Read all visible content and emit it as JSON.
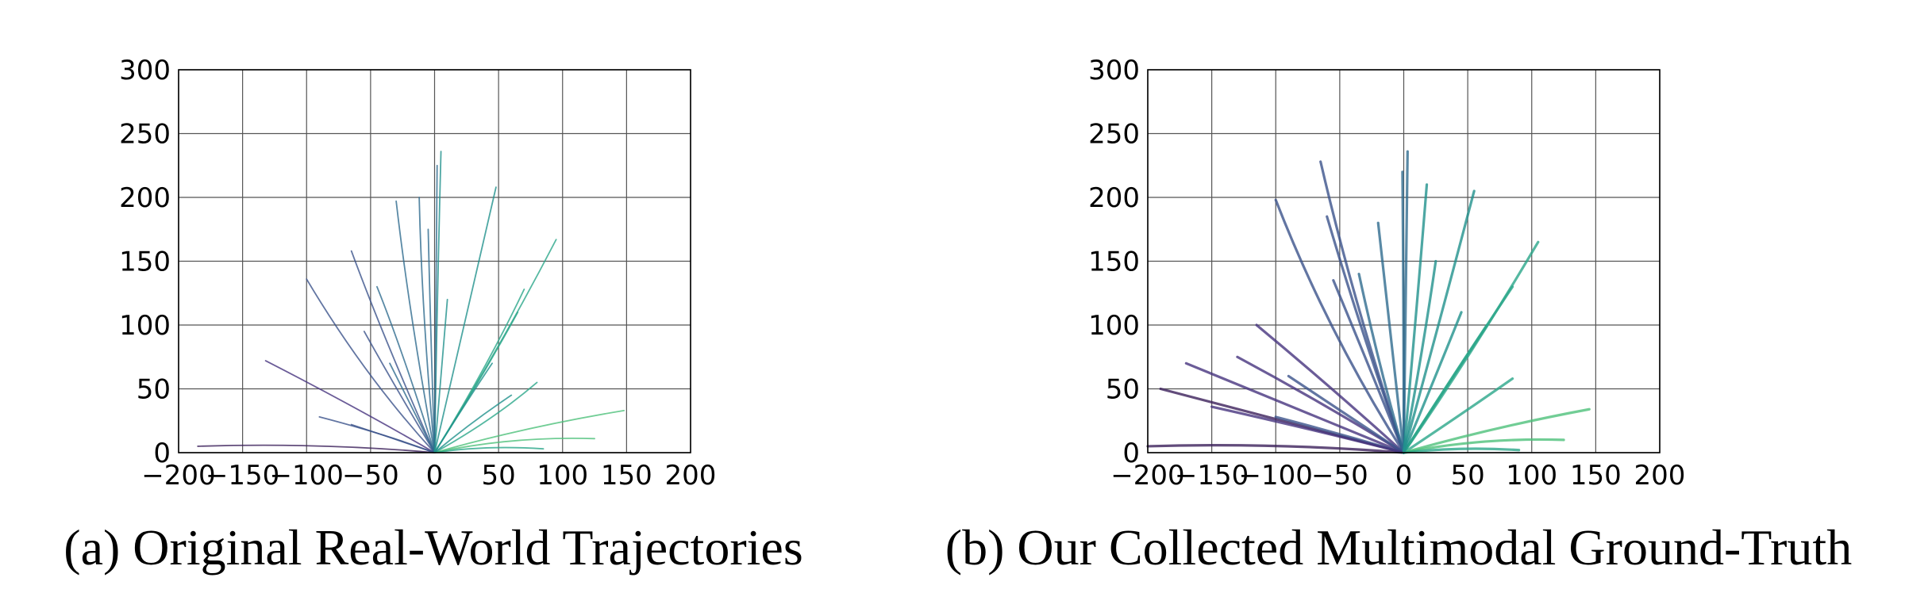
{
  "captions": {
    "a": "(a) Original Real-World Trajectories",
    "b": "(b) Our Collected Multimodal Ground-Truth"
  },
  "colors": {
    "palette": [
      "#3b1f5a",
      "#46337e",
      "#3b528b",
      "#2f6b8e",
      "#21918c",
      "#2aa68a",
      "#4ec07a"
    ],
    "grid": "#555555",
    "frame": "#000000"
  },
  "chart_data": [
    {
      "type": "line",
      "title": "",
      "xlabel": "",
      "ylabel": "",
      "xlim": [
        -200,
        200
      ],
      "ylim": [
        0,
        300
      ],
      "xticks": [
        "−200",
        "−150",
        "−100",
        "−50",
        "0",
        "50",
        "100",
        "150",
        "200"
      ],
      "yticks": [
        "0",
        "50",
        "100",
        "150",
        "200",
        "250",
        "300"
      ],
      "grid": true,
      "series": [
        {
          "x": [
            0,
            -90,
            -185
          ],
          "y": [
            0,
            8,
            5
          ]
        },
        {
          "x": [
            0,
            -60,
            -132
          ],
          "y": [
            0,
            35,
            72
          ]
        },
        {
          "x": [
            0,
            -40,
            -90
          ],
          "y": [
            0,
            15,
            28
          ]
        },
        {
          "x": [
            0,
            -35,
            -65
          ],
          "y": [
            0,
            12,
            22
          ]
        },
        {
          "x": [
            0,
            -55,
            -100
          ],
          "y": [
            0,
            60,
            136
          ]
        },
        {
          "x": [
            0,
            -40,
            -65
          ],
          "y": [
            0,
            90,
            158
          ]
        },
        {
          "x": [
            0,
            -25,
            -45
          ],
          "y": [
            0,
            80,
            130
          ]
        },
        {
          "x": [
            0,
            -30,
            -55
          ],
          "y": [
            0,
            50,
            95
          ]
        },
        {
          "x": [
            0,
            -20,
            -30
          ],
          "y": [
            0,
            110,
            197
          ]
        },
        {
          "x": [
            0,
            -10,
            -12
          ],
          "y": [
            0,
            110,
            200
          ]
        },
        {
          "x": [
            0,
            -20,
            -35
          ],
          "y": [
            0,
            40,
            70
          ]
        },
        {
          "x": [
            0,
            -3,
            -5
          ],
          "y": [
            0,
            90,
            175
          ]
        },
        {
          "x": [
            0,
            2,
            5
          ],
          "y": [
            0,
            120,
            236
          ]
        },
        {
          "x": [
            0,
            1,
            2
          ],
          "y": [
            0,
            100,
            225
          ]
        },
        {
          "x": [
            0,
            5,
            10
          ],
          "y": [
            0,
            60,
            120
          ]
        },
        {
          "x": [
            0,
            25,
            48
          ],
          "y": [
            0,
            110,
            208
          ]
        },
        {
          "x": [
            0,
            50,
            95
          ],
          "y": [
            0,
            80,
            167
          ]
        },
        {
          "x": [
            0,
            40,
            70
          ],
          "y": [
            0,
            65,
            128
          ]
        },
        {
          "x": [
            0,
            35,
            65
          ],
          "y": [
            0,
            55,
            110
          ]
        },
        {
          "x": [
            0,
            25,
            45
          ],
          "y": [
            0,
            40,
            70
          ]
        },
        {
          "x": [
            0,
            45,
            80
          ],
          "y": [
            0,
            25,
            55
          ]
        },
        {
          "x": [
            0,
            70,
            148
          ],
          "y": [
            0,
            20,
            33
          ]
        },
        {
          "x": [
            0,
            60,
            125
          ],
          "y": [
            0,
            13,
            11
          ]
        },
        {
          "x": [
            0,
            40,
            85
          ],
          "y": [
            0,
            6,
            3
          ]
        },
        {
          "x": [
            0,
            30,
            60
          ],
          "y": [
            0,
            25,
            45
          ]
        }
      ]
    },
    {
      "type": "line",
      "title": "",
      "xlabel": "",
      "ylabel": "",
      "xlim": [
        -200,
        200
      ],
      "ylim": [
        0,
        300
      ],
      "xticks": [
        "−200",
        "−150",
        "−100",
        "−50",
        "0",
        "50",
        "100",
        "150",
        "200"
      ],
      "yticks": [
        "0",
        "50",
        "100",
        "150",
        "200",
        "250",
        "300"
      ],
      "grid": true,
      "series": [
        {
          "x": [
            0,
            -100,
            -200
          ],
          "y": [
            0,
            8,
            5
          ]
        },
        {
          "x": [
            0,
            -95,
            -190
          ],
          "y": [
            0,
            25,
            50
          ]
        },
        {
          "x": [
            0,
            -85,
            -170
          ],
          "y": [
            0,
            35,
            70
          ]
        },
        {
          "x": [
            0,
            -65,
            -130
          ],
          "y": [
            0,
            40,
            75
          ]
        },
        {
          "x": [
            0,
            -55,
            -115
          ],
          "y": [
            0,
            50,
            100
          ]
        },
        {
          "x": [
            0,
            -60,
            -100
          ],
          "y": [
            0,
            95,
            198
          ]
        },
        {
          "x": [
            0,
            -40,
            -65
          ],
          "y": [
            0,
            120,
            228
          ]
        },
        {
          "x": [
            0,
            -35,
            -60
          ],
          "y": [
            0,
            100,
            185
          ]
        },
        {
          "x": [
            0,
            -30,
            -55
          ],
          "y": [
            0,
            75,
            135
          ]
        },
        {
          "x": [
            0,
            -20,
            -35
          ],
          "y": [
            0,
            70,
            140
          ]
        },
        {
          "x": [
            0,
            -45,
            -90
          ],
          "y": [
            0,
            30,
            60
          ]
        },
        {
          "x": [
            0,
            -50,
            -100
          ],
          "y": [
            0,
            15,
            28
          ]
        },
        {
          "x": [
            0,
            -70,
            -150
          ],
          "y": [
            0,
            18,
            36
          ]
        },
        {
          "x": [
            0,
            -10,
            -20
          ],
          "y": [
            0,
            90,
            180
          ]
        },
        {
          "x": [
            0,
            2,
            3
          ],
          "y": [
            0,
            120,
            236
          ]
        },
        {
          "x": [
            0,
            0,
            -1
          ],
          "y": [
            0,
            110,
            220
          ]
        },
        {
          "x": [
            0,
            10,
            18
          ],
          "y": [
            0,
            110,
            210
          ]
        },
        {
          "x": [
            0,
            30,
            55
          ],
          "y": [
            0,
            110,
            205
          ]
        },
        {
          "x": [
            0,
            55,
            105
          ],
          "y": [
            0,
            80,
            165
          ]
        },
        {
          "x": [
            0,
            45,
            85
          ],
          "y": [
            0,
            70,
            130
          ]
        },
        {
          "x": [
            0,
            35,
            65
          ],
          "y": [
            0,
            55,
            100
          ]
        },
        {
          "x": [
            0,
            45,
            85
          ],
          "y": [
            0,
            30,
            58
          ]
        },
        {
          "x": [
            0,
            70,
            145
          ],
          "y": [
            0,
            20,
            34
          ]
        },
        {
          "x": [
            0,
            60,
            125
          ],
          "y": [
            0,
            12,
            10
          ]
        },
        {
          "x": [
            0,
            45,
            90
          ],
          "y": [
            0,
            5,
            2
          ]
        },
        {
          "x": [
            0,
            25,
            45
          ],
          "y": [
            0,
            60,
            110
          ]
        },
        {
          "x": [
            0,
            15,
            25
          ],
          "y": [
            0,
            80,
            150
          ]
        }
      ]
    }
  ]
}
